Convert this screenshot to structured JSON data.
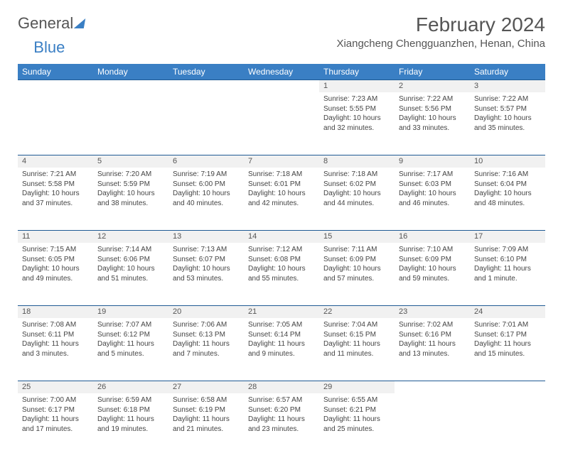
{
  "logo": {
    "text1": "General",
    "text2": "Blue"
  },
  "title": "February 2024",
  "location": "Xiangcheng Chengguanzhen, Henan, China",
  "colors": {
    "header_bg": "#3a7fc4",
    "header_text": "#ffffff",
    "daynum_bg": "#f1f1f1",
    "border": "#1f5a94",
    "body_text": "#444444",
    "title_text": "#555555"
  },
  "fonts": {
    "title_pt": 28,
    "location_pt": 15,
    "dayheader_pt": 12,
    "daynum_pt": 11,
    "detail_pt": 10
  },
  "day_headers": [
    "Sunday",
    "Monday",
    "Tuesday",
    "Wednesday",
    "Thursday",
    "Friday",
    "Saturday"
  ],
  "weeks": [
    [
      null,
      null,
      null,
      null,
      {
        "n": "1",
        "sr": "Sunrise: 7:23 AM",
        "ss": "Sunset: 5:55 PM",
        "dl": "Daylight: 10 hours and 32 minutes."
      },
      {
        "n": "2",
        "sr": "Sunrise: 7:22 AM",
        "ss": "Sunset: 5:56 PM",
        "dl": "Daylight: 10 hours and 33 minutes."
      },
      {
        "n": "3",
        "sr": "Sunrise: 7:22 AM",
        "ss": "Sunset: 5:57 PM",
        "dl": "Daylight: 10 hours and 35 minutes."
      }
    ],
    [
      {
        "n": "4",
        "sr": "Sunrise: 7:21 AM",
        "ss": "Sunset: 5:58 PM",
        "dl": "Daylight: 10 hours and 37 minutes."
      },
      {
        "n": "5",
        "sr": "Sunrise: 7:20 AM",
        "ss": "Sunset: 5:59 PM",
        "dl": "Daylight: 10 hours and 38 minutes."
      },
      {
        "n": "6",
        "sr": "Sunrise: 7:19 AM",
        "ss": "Sunset: 6:00 PM",
        "dl": "Daylight: 10 hours and 40 minutes."
      },
      {
        "n": "7",
        "sr": "Sunrise: 7:18 AM",
        "ss": "Sunset: 6:01 PM",
        "dl": "Daylight: 10 hours and 42 minutes."
      },
      {
        "n": "8",
        "sr": "Sunrise: 7:18 AM",
        "ss": "Sunset: 6:02 PM",
        "dl": "Daylight: 10 hours and 44 minutes."
      },
      {
        "n": "9",
        "sr": "Sunrise: 7:17 AM",
        "ss": "Sunset: 6:03 PM",
        "dl": "Daylight: 10 hours and 46 minutes."
      },
      {
        "n": "10",
        "sr": "Sunrise: 7:16 AM",
        "ss": "Sunset: 6:04 PM",
        "dl": "Daylight: 10 hours and 48 minutes."
      }
    ],
    [
      {
        "n": "11",
        "sr": "Sunrise: 7:15 AM",
        "ss": "Sunset: 6:05 PM",
        "dl": "Daylight: 10 hours and 49 minutes."
      },
      {
        "n": "12",
        "sr": "Sunrise: 7:14 AM",
        "ss": "Sunset: 6:06 PM",
        "dl": "Daylight: 10 hours and 51 minutes."
      },
      {
        "n": "13",
        "sr": "Sunrise: 7:13 AM",
        "ss": "Sunset: 6:07 PM",
        "dl": "Daylight: 10 hours and 53 minutes."
      },
      {
        "n": "14",
        "sr": "Sunrise: 7:12 AM",
        "ss": "Sunset: 6:08 PM",
        "dl": "Daylight: 10 hours and 55 minutes."
      },
      {
        "n": "15",
        "sr": "Sunrise: 7:11 AM",
        "ss": "Sunset: 6:09 PM",
        "dl": "Daylight: 10 hours and 57 minutes."
      },
      {
        "n": "16",
        "sr": "Sunrise: 7:10 AM",
        "ss": "Sunset: 6:09 PM",
        "dl": "Daylight: 10 hours and 59 minutes."
      },
      {
        "n": "17",
        "sr": "Sunrise: 7:09 AM",
        "ss": "Sunset: 6:10 PM",
        "dl": "Daylight: 11 hours and 1 minute."
      }
    ],
    [
      {
        "n": "18",
        "sr": "Sunrise: 7:08 AM",
        "ss": "Sunset: 6:11 PM",
        "dl": "Daylight: 11 hours and 3 minutes."
      },
      {
        "n": "19",
        "sr": "Sunrise: 7:07 AM",
        "ss": "Sunset: 6:12 PM",
        "dl": "Daylight: 11 hours and 5 minutes."
      },
      {
        "n": "20",
        "sr": "Sunrise: 7:06 AM",
        "ss": "Sunset: 6:13 PM",
        "dl": "Daylight: 11 hours and 7 minutes."
      },
      {
        "n": "21",
        "sr": "Sunrise: 7:05 AM",
        "ss": "Sunset: 6:14 PM",
        "dl": "Daylight: 11 hours and 9 minutes."
      },
      {
        "n": "22",
        "sr": "Sunrise: 7:04 AM",
        "ss": "Sunset: 6:15 PM",
        "dl": "Daylight: 11 hours and 11 minutes."
      },
      {
        "n": "23",
        "sr": "Sunrise: 7:02 AM",
        "ss": "Sunset: 6:16 PM",
        "dl": "Daylight: 11 hours and 13 minutes."
      },
      {
        "n": "24",
        "sr": "Sunrise: 7:01 AM",
        "ss": "Sunset: 6:17 PM",
        "dl": "Daylight: 11 hours and 15 minutes."
      }
    ],
    [
      {
        "n": "25",
        "sr": "Sunrise: 7:00 AM",
        "ss": "Sunset: 6:17 PM",
        "dl": "Daylight: 11 hours and 17 minutes."
      },
      {
        "n": "26",
        "sr": "Sunrise: 6:59 AM",
        "ss": "Sunset: 6:18 PM",
        "dl": "Daylight: 11 hours and 19 minutes."
      },
      {
        "n": "27",
        "sr": "Sunrise: 6:58 AM",
        "ss": "Sunset: 6:19 PM",
        "dl": "Daylight: 11 hours and 21 minutes."
      },
      {
        "n": "28",
        "sr": "Sunrise: 6:57 AM",
        "ss": "Sunset: 6:20 PM",
        "dl": "Daylight: 11 hours and 23 minutes."
      },
      {
        "n": "29",
        "sr": "Sunrise: 6:55 AM",
        "ss": "Sunset: 6:21 PM",
        "dl": "Daylight: 11 hours and 25 minutes."
      },
      null,
      null
    ]
  ]
}
